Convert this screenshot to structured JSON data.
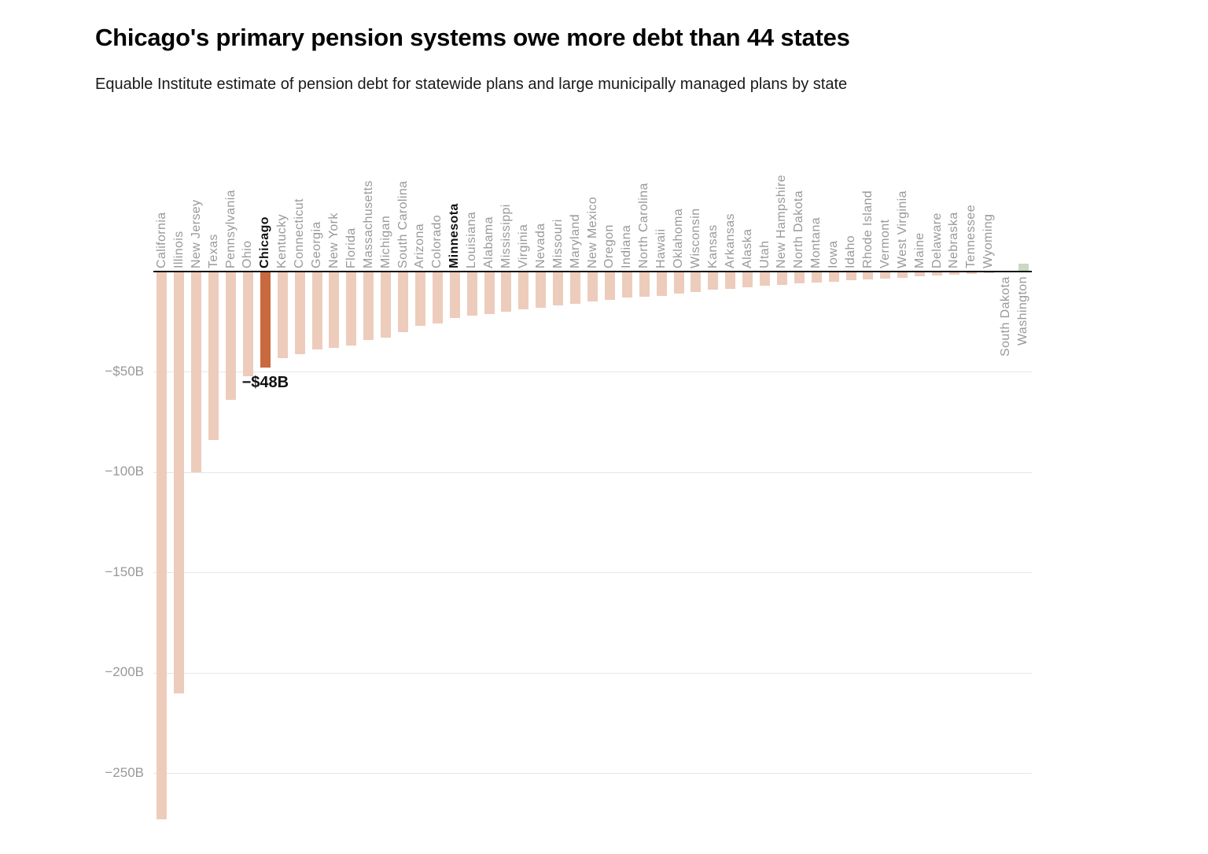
{
  "chart_data": {
    "type": "bar",
    "title": "Chicago's primary pension systems owe more debt than 44 states",
    "subtitle": "Equable Institute estimate of pension debt for statewide plans and large municipally managed plans by state",
    "unit": "billions USD",
    "xlabel": "",
    "ylabel": "",
    "ylim": [
      -280,
      10
    ],
    "grid": true,
    "legend": false,
    "yticks": [
      {
        "value": -50,
        "label": "−$50B"
      },
      {
        "value": -100,
        "label": "−100B"
      },
      {
        "value": -150,
        "label": "−150B"
      },
      {
        "value": -200,
        "label": "−200B"
      },
      {
        "value": -250,
        "label": "−250B"
      }
    ],
    "annotation": {
      "bar": "Chicago",
      "text": "−$48B"
    },
    "highlight_bar": "Chicago",
    "emphasized_labels": [
      "Chicago",
      "Minnesota"
    ],
    "colors": {
      "bar_negative": "#edccbc",
      "bar_highlight": "#c9693f",
      "bar_positive": "#ccd8c2",
      "label_default": "#999999",
      "label_emphasis": "#111111",
      "gridline": "#e6e6e6",
      "axis": "#111111",
      "ytick_label": "#999999",
      "annotation_text": "#111111"
    },
    "bars": [
      {
        "label": "California",
        "value": -273
      },
      {
        "label": "Illinois",
        "value": -210
      },
      {
        "label": "New Jersey",
        "value": -100
      },
      {
        "label": "Texas",
        "value": -84
      },
      {
        "label": "Pennsylvania",
        "value": -64
      },
      {
        "label": "Ohio",
        "value": -52
      },
      {
        "label": "Chicago",
        "value": -48
      },
      {
        "label": "Kentucky",
        "value": -43
      },
      {
        "label": "Connecticut",
        "value": -41
      },
      {
        "label": "Georgia",
        "value": -39
      },
      {
        "label": "New York",
        "value": -38
      },
      {
        "label": "Florida",
        "value": -37
      },
      {
        "label": "Massachusetts",
        "value": -34
      },
      {
        "label": "Michigan",
        "value": -33
      },
      {
        "label": "South Carolina",
        "value": -30
      },
      {
        "label": "Arizona",
        "value": -27
      },
      {
        "label": "Colorado",
        "value": -26
      },
      {
        "label": "Minnesota",
        "value": -23
      },
      {
        "label": "Louisiana",
        "value": -22
      },
      {
        "label": "Alabama",
        "value": -21
      },
      {
        "label": "Mississippi",
        "value": -20
      },
      {
        "label": "Virginia",
        "value": -19
      },
      {
        "label": "Nevada",
        "value": -18
      },
      {
        "label": "Missouri",
        "value": -17
      },
      {
        "label": "Maryland",
        "value": -16
      },
      {
        "label": "New Mexico",
        "value": -15
      },
      {
        "label": "Oregon",
        "value": -14
      },
      {
        "label": "Indiana",
        "value": -13
      },
      {
        "label": "North Carolina",
        "value": -12.5
      },
      {
        "label": "Hawaii",
        "value": -12
      },
      {
        "label": "Oklahoma",
        "value": -11
      },
      {
        "label": "Wisconsin",
        "value": -10
      },
      {
        "label": "Kansas",
        "value": -9
      },
      {
        "label": "Arkansas",
        "value": -8.5
      },
      {
        "label": "Alaska",
        "value": -8
      },
      {
        "label": "Utah",
        "value": -7
      },
      {
        "label": "New Hampshire",
        "value": -6.5
      },
      {
        "label": "North Dakota",
        "value": -6
      },
      {
        "label": "Montana",
        "value": -5.5
      },
      {
        "label": "Iowa",
        "value": -5
      },
      {
        "label": "Idaho",
        "value": -4.5
      },
      {
        "label": "Rhode Island",
        "value": -4
      },
      {
        "label": "Vermont",
        "value": -3.5
      },
      {
        "label": "West Virginia",
        "value": -3
      },
      {
        "label": "Maine",
        "value": -2.5
      },
      {
        "label": "Delaware",
        "value": -2
      },
      {
        "label": "Nebraska",
        "value": -1.5
      },
      {
        "label": "Tennessee",
        "value": -1
      },
      {
        "label": "Wyoming",
        "value": -0.8
      },
      {
        "label": "South Dakota",
        "value": 0.3
      },
      {
        "label": "Washington",
        "value": 4
      }
    ]
  }
}
